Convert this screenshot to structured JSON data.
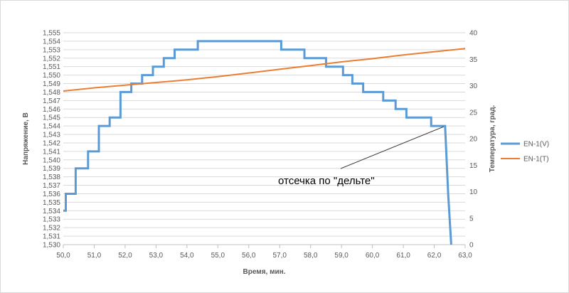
{
  "chart_data": {
    "type": "line",
    "xlabel": "Время, мин.",
    "ylabel": "Напряжение, В",
    "y2label": "Температура, град.",
    "xlim": [
      50,
      63
    ],
    "ylim": [
      1.53,
      1.555
    ],
    "y2lim": [
      0,
      40
    ],
    "x_ticks": [
      "50,0",
      "51,0",
      "52,0",
      "53,0",
      "54,0",
      "55,0",
      "56,0",
      "57,0",
      "58,0",
      "59,0",
      "60,0",
      "61,0",
      "62,0",
      "63,0"
    ],
    "y_ticks": [
      "1,530",
      "1,531",
      "1,532",
      "1,533",
      "1,534",
      "1,535",
      "1,536",
      "1,537",
      "1,538",
      "1,539",
      "1,540",
      "1,541",
      "1,542",
      "1,543",
      "1,544",
      "1,545",
      "1,546",
      "1,547",
      "1,548",
      "1,549",
      "1,550",
      "1,551",
      "1,552",
      "1,553",
      "1,554",
      "1,555"
    ],
    "y2_ticks": [
      "0",
      "5",
      "10",
      "15",
      "20",
      "25",
      "30",
      "35",
      "40"
    ],
    "grid": "horizontal",
    "legend": "right",
    "series": [
      {
        "name": "EN-1(V)",
        "axis": "left",
        "color": "#5b9bd5",
        "points": [
          [
            50.0,
            1.534
          ],
          [
            50.08,
            1.534
          ],
          [
            50.08,
            1.536
          ],
          [
            50.4,
            1.536
          ],
          [
            50.4,
            1.539
          ],
          [
            50.8,
            1.539
          ],
          [
            50.8,
            1.541
          ],
          [
            51.15,
            1.541
          ],
          [
            51.15,
            1.544
          ],
          [
            51.5,
            1.544
          ],
          [
            51.5,
            1.545
          ],
          [
            51.85,
            1.545
          ],
          [
            51.85,
            1.548
          ],
          [
            52.2,
            1.548
          ],
          [
            52.2,
            1.549
          ],
          [
            52.55,
            1.549
          ],
          [
            52.55,
            1.55
          ],
          [
            52.9,
            1.55
          ],
          [
            52.9,
            1.551
          ],
          [
            53.25,
            1.551
          ],
          [
            53.25,
            1.552
          ],
          [
            53.6,
            1.552
          ],
          [
            53.6,
            1.553
          ],
          [
            54.35,
            1.553
          ],
          [
            54.35,
            1.554
          ],
          [
            57.05,
            1.554
          ],
          [
            57.05,
            1.553
          ],
          [
            57.8,
            1.553
          ],
          [
            57.8,
            1.552
          ],
          [
            58.5,
            1.552
          ],
          [
            58.5,
            1.551
          ],
          [
            59.05,
            1.551
          ],
          [
            59.05,
            1.55
          ],
          [
            59.35,
            1.55
          ],
          [
            59.35,
            1.549
          ],
          [
            59.7,
            1.549
          ],
          [
            59.7,
            1.548
          ],
          [
            60.35,
            1.548
          ],
          [
            60.35,
            1.547
          ],
          [
            60.75,
            1.547
          ],
          [
            60.75,
            1.546
          ],
          [
            61.1,
            1.546
          ],
          [
            61.1,
            1.545
          ],
          [
            61.9,
            1.545
          ],
          [
            61.9,
            1.544
          ],
          [
            62.35,
            1.544
          ],
          [
            62.45,
            1.536
          ],
          [
            62.55,
            1.53
          ]
        ]
      },
      {
        "name": "EN-1(T)",
        "axis": "right",
        "color": "#ed7d31",
        "points": [
          [
            50.0,
            29.0
          ],
          [
            51.0,
            29.6
          ],
          [
            52.0,
            30.1
          ],
          [
            53.0,
            30.6
          ],
          [
            54.0,
            31.1
          ],
          [
            55.0,
            31.7
          ],
          [
            56.0,
            32.4
          ],
          [
            57.0,
            33.1
          ],
          [
            58.0,
            33.8
          ],
          [
            59.0,
            34.5
          ],
          [
            60.0,
            35.1
          ],
          [
            61.0,
            35.8
          ],
          [
            62.0,
            36.4
          ],
          [
            63.0,
            37.0
          ]
        ]
      }
    ],
    "annotation": {
      "text": "отсечка по \"дельте\"",
      "target_x": 62.35,
      "target_y": 1.544
    }
  }
}
